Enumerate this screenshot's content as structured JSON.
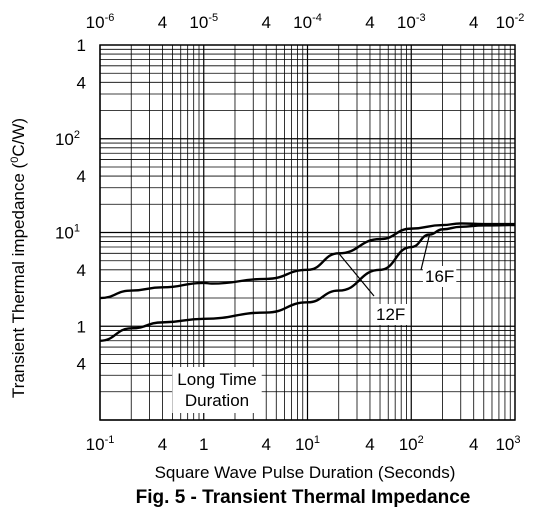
{
  "chart_data": {
    "type": "line",
    "title": "Fig. 5 - Transient Thermal Impedance",
    "xlabel": "Square Wave Pulse Duration (Seconds)",
    "ylabel_main": "Transient Thermal impedance (",
    "ylabel_unit_sup": "0",
    "ylabel_unit": "C/W)",
    "x_scale": "log",
    "y_scale": "log",
    "xlim": [
      0.1,
      1000
    ],
    "ylim": [
      0.1,
      1000
    ],
    "bottom_ticks": [
      {
        "base": "10",
        "exp": "-1",
        "value": 0.1
      },
      {
        "base": "4",
        "exp": "",
        "value": 0.4
      },
      {
        "base": "1",
        "exp": "",
        "value": 1
      },
      {
        "base": "4",
        "exp": "",
        "value": 4
      },
      {
        "base": "10",
        "exp": "1",
        "value": 10
      },
      {
        "base": "4",
        "exp": "",
        "value": 40
      },
      {
        "base": "10",
        "exp": "2",
        "value": 100
      },
      {
        "base": "4",
        "exp": "",
        "value": 400
      },
      {
        "base": "10",
        "exp": "3",
        "value": 1000
      }
    ],
    "top_ticks": [
      {
        "base": "10",
        "exp": "-6"
      },
      {
        "base": "4",
        "exp": ""
      },
      {
        "base": "10",
        "exp": "-5"
      },
      {
        "base": "4",
        "exp": ""
      },
      {
        "base": "10",
        "exp": "-4"
      },
      {
        "base": "4",
        "exp": ""
      },
      {
        "base": "10",
        "exp": "-3"
      },
      {
        "base": "4",
        "exp": ""
      },
      {
        "base": "10",
        "exp": "-2"
      }
    ],
    "left_ticks": [
      {
        "base": "1",
        "exp": "",
        "value": 1000
      },
      {
        "base": "4",
        "exp": "",
        "value": 400
      },
      {
        "base": "10",
        "exp": "2",
        "value": 100
      },
      {
        "base": "4",
        "exp": "",
        "value": 40
      },
      {
        "base": "10",
        "exp": "1",
        "value": 10
      },
      {
        "base": "4",
        "exp": "",
        "value": 4
      },
      {
        "base": "1",
        "exp": "",
        "value": 1
      },
      {
        "base": "4",
        "exp": "",
        "value": 0.4
      }
    ],
    "series": [
      {
        "name": "12F",
        "x": [
          0.1,
          0.2,
          0.4,
          1,
          1.2,
          4,
          10,
          20,
          50,
          100,
          200,
          300,
          500,
          1000
        ],
        "y": [
          2.0,
          2.4,
          2.6,
          2.9,
          2.85,
          3.2,
          4.0,
          6.0,
          8.5,
          11,
          12,
          12.5,
          12.3,
          12.3
        ]
      },
      {
        "name": "16F",
        "x": [
          0.1,
          0.2,
          0.4,
          1,
          4,
          10,
          20,
          50,
          100,
          150,
          200,
          300,
          500,
          1000
        ],
        "y": [
          0.7,
          0.95,
          1.1,
          1.2,
          1.4,
          1.8,
          2.4,
          4.0,
          7.0,
          9.5,
          10.8,
          11.5,
          11.9,
          12.0
        ]
      }
    ],
    "annotations": {
      "label_12F": "12F",
      "label_16F": "16F",
      "long_time_line1": "Long Time",
      "long_time_line2": "Duration"
    }
  }
}
